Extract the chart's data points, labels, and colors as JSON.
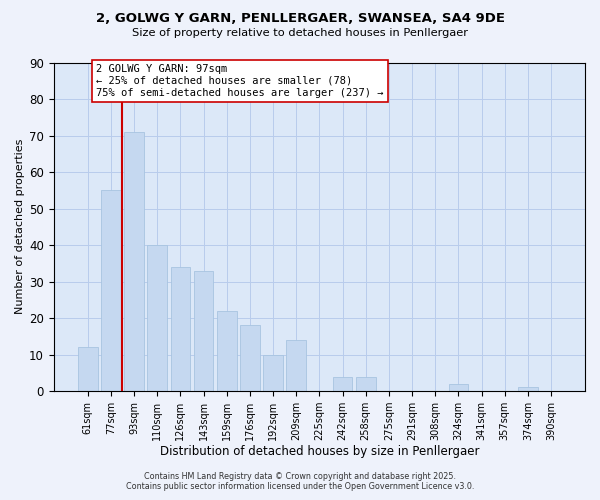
{
  "title_line1": "2, GOLWG Y GARN, PENLLERGAER, SWANSEA, SA4 9DE",
  "title_line2": "Size of property relative to detached houses in Penllergaer",
  "xlabel": "Distribution of detached houses by size in Penllergaer",
  "ylabel": "Number of detached properties",
  "bar_labels": [
    "61sqm",
    "77sqm",
    "93sqm",
    "110sqm",
    "126sqm",
    "143sqm",
    "159sqm",
    "176sqm",
    "192sqm",
    "209sqm",
    "225sqm",
    "242sqm",
    "258sqm",
    "275sqm",
    "291sqm",
    "308sqm",
    "324sqm",
    "341sqm",
    "357sqm",
    "374sqm",
    "390sqm"
  ],
  "bar_values": [
    12,
    55,
    71,
    40,
    34,
    33,
    22,
    18,
    10,
    14,
    0,
    4,
    4,
    0,
    0,
    0,
    2,
    0,
    0,
    1,
    0
  ],
  "bar_color": "#c5d8f0",
  "bar_edge_color": "#a8c4e0",
  "vline_color": "#cc0000",
  "ylim": [
    0,
    90
  ],
  "yticks": [
    0,
    10,
    20,
    30,
    40,
    50,
    60,
    70,
    80,
    90
  ],
  "annotation_title": "2 GOLWG Y GARN: 97sqm",
  "annotation_line1": "← 25% of detached houses are smaller (78)",
  "annotation_line2": "75% of semi-detached houses are larger (237) →",
  "footer_line1": "Contains HM Land Registry data © Crown copyright and database right 2025.",
  "footer_line2": "Contains public sector information licensed under the Open Government Licence v3.0.",
  "background_color": "#eef2fb",
  "plot_bg_color": "#dce8f8",
  "grid_color": "#b8ccec"
}
